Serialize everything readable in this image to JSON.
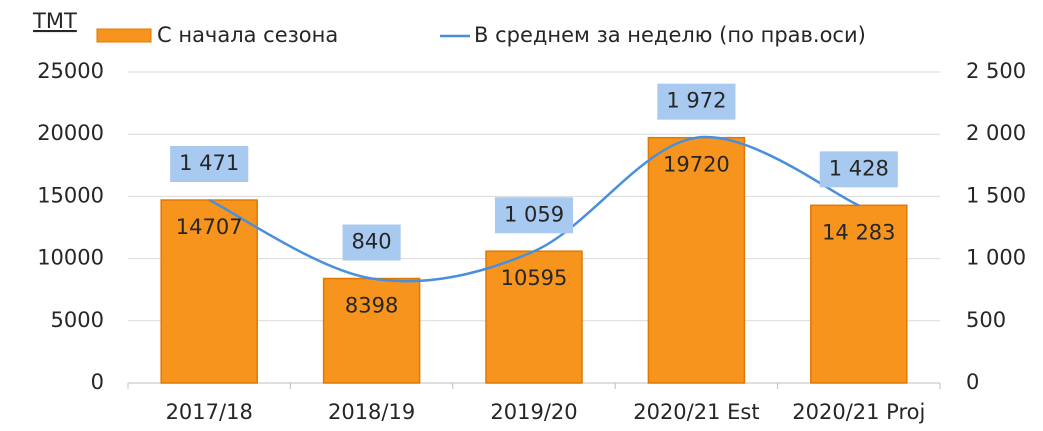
{
  "chart_data": {
    "type": "bar",
    "unit_label": "ТМТ",
    "categories": [
      "2017/18",
      "2018/19",
      "2019/20",
      "2020/21 Est",
      "2020/21 Proj"
    ],
    "series": [
      {
        "name": "С начала сезона",
        "type": "bar",
        "color": "#f7941d",
        "values": [
          14707,
          8398,
          10595,
          19720,
          14283
        ],
        "value_labels": [
          "14707",
          "8398",
          "10595",
          "19720",
          "14 283"
        ]
      },
      {
        "name": "В среднем за неделю (по прав.оси)",
        "type": "line",
        "axis": "y2",
        "color": "#4a8fdc",
        "values": [
          1471,
          840,
          1059,
          1972,
          1428
        ],
        "value_labels": [
          "1 471",
          "840",
          "1 059",
          "1 972",
          "1 428"
        ]
      }
    ],
    "ylim": [
      0,
      25000
    ],
    "yticks": [
      0,
      5000,
      10000,
      15000,
      20000,
      25000
    ],
    "y2lim": [
      0,
      2500
    ],
    "y2ticks": [
      0,
      500,
      {
        "value": 1000,
        "label": "1 000"
      },
      {
        "value": 1500,
        "label": "1 500"
      },
      {
        "value": 2000,
        "label": "2 000"
      },
      {
        "value": 2500,
        "label": "2 500"
      }
    ],
    "grid": true
  }
}
